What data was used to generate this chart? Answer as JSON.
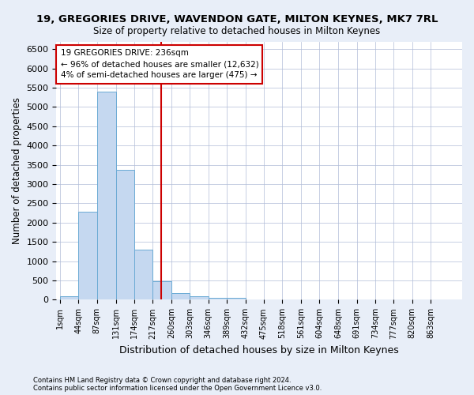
{
  "title": "19, GREGORIES DRIVE, WAVENDON GATE, MILTON KEYNES, MK7 7RL",
  "subtitle": "Size of property relative to detached houses in Milton Keynes",
  "xlabel": "Distribution of detached houses by size in Milton Keynes",
  "ylabel": "Number of detached properties",
  "bin_labels": [
    "1sqm",
    "44sqm",
    "87sqm",
    "131sqm",
    "174sqm",
    "217sqm",
    "260sqm",
    "303sqm",
    "346sqm",
    "389sqm",
    "432sqm",
    "475sqm",
    "518sqm",
    "561sqm",
    "604sqm",
    "648sqm",
    "691sqm",
    "734sqm",
    "777sqm",
    "820sqm",
    "863sqm"
  ],
  "bin_edges": [
    1,
    44,
    87,
    131,
    174,
    217,
    260,
    303,
    346,
    389,
    432,
    475,
    518,
    561,
    604,
    648,
    691,
    734,
    777,
    820,
    863,
    906
  ],
  "bar_heights": [
    100,
    2280,
    5400,
    3380,
    1290,
    475,
    175,
    100,
    50,
    50,
    0,
    0,
    0,
    0,
    0,
    0,
    0,
    0,
    0,
    0,
    0
  ],
  "bar_color": "#c5d8f0",
  "bar_edgecolor": "#6aaad4",
  "property_line_x": 236,
  "property_line_color": "#cc0000",
  "ylim": [
    0,
    6700
  ],
  "yticks": [
    0,
    500,
    1000,
    1500,
    2000,
    2500,
    3000,
    3500,
    4000,
    4500,
    5000,
    5500,
    6000,
    6500
  ],
  "annotation_title": "19 GREGORIES DRIVE: 236sqm",
  "annotation_line1": "← 96% of detached houses are smaller (12,632)",
  "annotation_line2": "4% of semi-detached houses are larger (475) →",
  "footer1": "Contains HM Land Registry data © Crown copyright and database right 2024.",
  "footer2": "Contains public sector information licensed under the Open Government Licence v3.0.",
  "background_color": "#e8eef8",
  "plot_bg_color": "#ffffff",
  "grid_color": "#b0bcd8"
}
